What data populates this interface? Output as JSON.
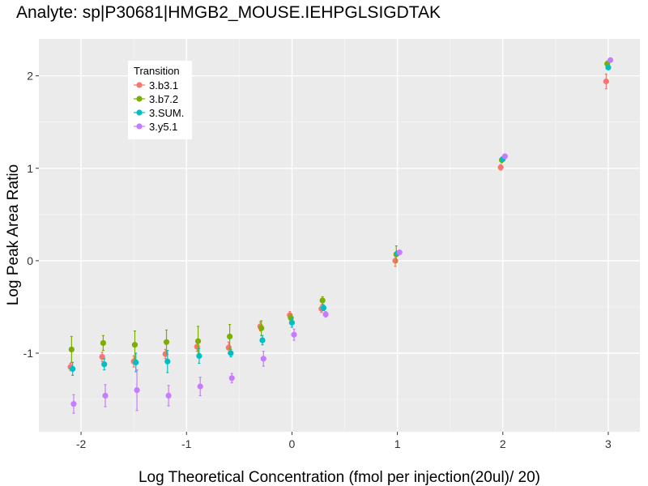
{
  "chart_data": {
    "type": "scatter",
    "title": "Analyte: sp|P30681|HMGB2_MOUSE.IEHPGLSIGDTAK",
    "xlabel": "Log Theoretical Concentration (fmol per injection(20ul)/ 20)",
    "ylabel": "Log Peak Area Ratio",
    "xlim": [
      -2.4,
      3.3
    ],
    "ylim": [
      -1.85,
      2.4
    ],
    "x_ticks": [
      -2,
      -1,
      0,
      1,
      2,
      3
    ],
    "x_tick_labels": [
      "-2",
      "-1",
      "0",
      "1",
      "2",
      "3"
    ],
    "y_ticks": [
      -1,
      0,
      1,
      2
    ],
    "y_tick_labels": [
      "-1",
      "0",
      "1",
      "2"
    ],
    "grid": true,
    "legend": {
      "title": "Transition",
      "position": "top-left",
      "entries": [
        "3.b3.1",
        "3.b7.2",
        "3.SUM.",
        "3.y5.1"
      ]
    },
    "series": [
      {
        "name": "3.b3.1",
        "color": "#F8766D",
        "x": [
          -2.1,
          -1.8,
          -1.5,
          -1.2,
          -0.9,
          -0.6,
          -0.3,
          -0.02,
          0.28,
          0.98,
          1.98,
          2.98
        ],
        "y": [
          -1.15,
          -1.04,
          -1.09,
          -1.01,
          -0.93,
          -0.94,
          -0.71,
          -0.59,
          -0.52,
          0.0,
          1.01,
          1.94
        ],
        "err": [
          0.04,
          0.05,
          0.06,
          0.05,
          0.05,
          0.06,
          0.05,
          0.04,
          0.04,
          0.06,
          0.03,
          0.08
        ]
      },
      {
        "name": "3.b7.2",
        "color": "#7CAE00",
        "x": [
          -2.09,
          -1.79,
          -1.49,
          -1.19,
          -0.89,
          -0.59,
          -0.29,
          -0.01,
          0.29,
          0.99,
          1.99,
          2.99
        ],
        "y": [
          -0.96,
          -0.89,
          -0.91,
          -0.88,
          -0.87,
          -0.82,
          -0.73,
          -0.62,
          -0.43,
          0.07,
          1.09,
          2.13
        ],
        "err": [
          0.14,
          0.08,
          0.15,
          0.13,
          0.16,
          0.13,
          0.08,
          0.04,
          0.04,
          0.09,
          0.03,
          0.03
        ]
      },
      {
        "name": "3.SUM.",
        "color": "#00BFC4",
        "x": [
          -2.08,
          -1.78,
          -1.48,
          -1.18,
          -0.88,
          -0.58,
          -0.28,
          0.0,
          0.3,
          1.0,
          2.0,
          3.0
        ],
        "y": [
          -1.17,
          -1.12,
          -1.1,
          -1.09,
          -1.03,
          -1.0,
          -0.86,
          -0.67,
          -0.51,
          0.08,
          1.1,
          2.09
        ],
        "err": [
          0.07,
          0.06,
          0.1,
          0.12,
          0.08,
          0.04,
          0.05,
          0.05,
          0.03,
          0.02,
          0.02,
          0.02
        ]
      },
      {
        "name": "3.y5.1",
        "color": "#C77CFF",
        "x": [
          -2.07,
          -1.77,
          -1.47,
          -1.17,
          -0.87,
          -0.57,
          -0.27,
          0.02,
          0.32,
          1.02,
          2.02,
          3.02
        ],
        "y": [
          -1.55,
          -1.46,
          -1.4,
          -1.46,
          -1.36,
          -1.27,
          -1.06,
          -0.8,
          -0.58,
          0.09,
          1.13,
          2.17
        ],
        "err": [
          0.1,
          0.12,
          0.22,
          0.11,
          0.1,
          0.05,
          0.08,
          0.06,
          0.03,
          0.02,
          0.02,
          0.02
        ]
      }
    ]
  }
}
